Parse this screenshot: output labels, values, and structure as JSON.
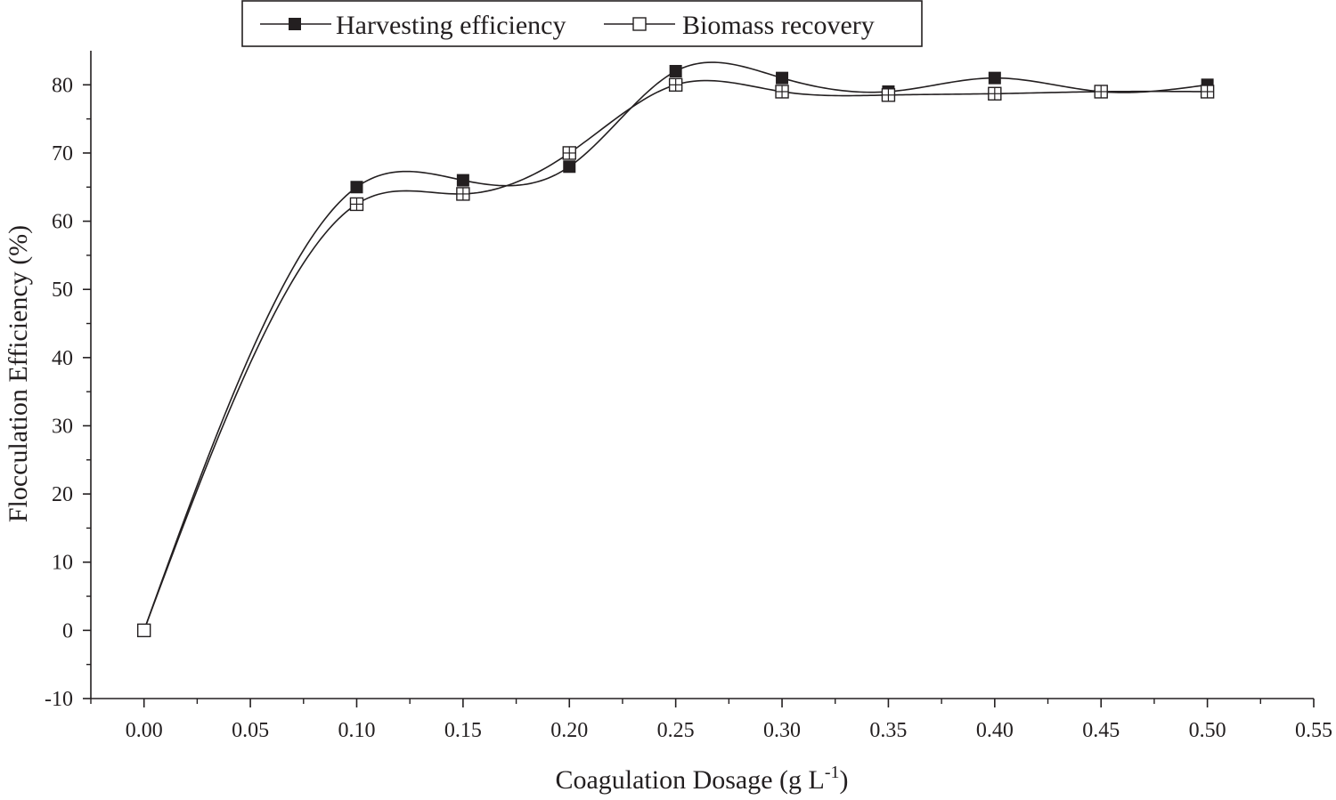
{
  "chart_data": {
    "type": "line",
    "title": "",
    "xlabel": "Coagulation Dosage (g L",
    "xlabel_superscript": "-1",
    "xlabel_suffix": ")",
    "ylabel": "Flocculation Efficiency (%)",
    "xlim": [
      -0.025,
      0.55
    ],
    "ylim": [
      -10,
      85
    ],
    "x_ticks": [
      0.0,
      0.05,
      0.1,
      0.15,
      0.2,
      0.25,
      0.3,
      0.35,
      0.4,
      0.45,
      0.5,
      0.55
    ],
    "x_tick_labels": [
      "0.00",
      "0.05",
      "0.10",
      "0.15",
      "0.20",
      "0.25",
      "0.30",
      "0.35",
      "0.40",
      "0.45",
      "0.50",
      "0.55"
    ],
    "y_ticks": [
      -10,
      0,
      10,
      20,
      30,
      40,
      50,
      60,
      70,
      80
    ],
    "y_tick_labels": [
      "-10",
      "0",
      "10",
      "20",
      "30",
      "40",
      "50",
      "60",
      "70",
      "80"
    ],
    "grid": false,
    "legend_position": "top-center",
    "series": [
      {
        "name": "Harvesting efficiency",
        "marker": "filled-square",
        "color": "#231f20",
        "x": [
          0.0,
          0.1,
          0.15,
          0.2,
          0.25,
          0.3,
          0.35,
          0.4,
          0.45,
          0.5
        ],
        "values": [
          0,
          65,
          66,
          68,
          82,
          81,
          79,
          81,
          79,
          80
        ]
      },
      {
        "name": "Biomass recovery",
        "marker": "open-square",
        "color": "#231f20",
        "x": [
          0.0,
          0.1,
          0.15,
          0.2,
          0.25,
          0.3,
          0.35,
          0.4,
          0.45,
          0.5
        ],
        "values": [
          0,
          62.5,
          64,
          70,
          80,
          79,
          78.5,
          78.7,
          79,
          79
        ]
      }
    ]
  }
}
